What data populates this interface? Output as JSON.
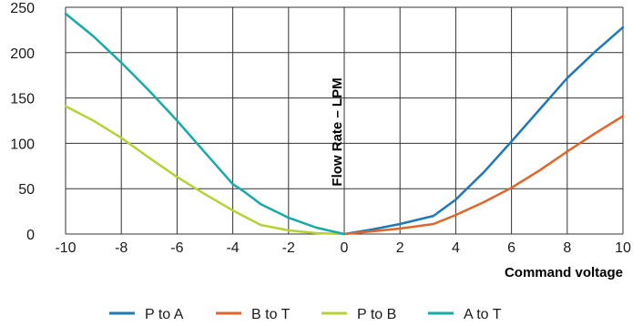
{
  "chart_data": {
    "type": "line",
    "title": "",
    "xlabel": "Command voltage",
    "ylabel": "Flow Rate – LPM",
    "xlim": [
      -10,
      10
    ],
    "ylim": [
      0,
      250
    ],
    "x_ticks": [
      "-10",
      "-8",
      "-6",
      "-4",
      "-2",
      "0",
      "2",
      "4",
      "6",
      "8",
      "10"
    ],
    "y_ticks": [
      "0",
      "50",
      "100",
      "150",
      "200",
      "250"
    ],
    "grid": true,
    "legend_position": "bottom",
    "series": [
      {
        "name": "P to A",
        "color": "#1f78b8",
        "points": [
          [
            0,
            0
          ],
          [
            1,
            5
          ],
          [
            2,
            11
          ],
          [
            3.2,
            20
          ],
          [
            4,
            38
          ],
          [
            5,
            68
          ],
          [
            6,
            102
          ],
          [
            7,
            137
          ],
          [
            8,
            172
          ],
          [
            9,
            201
          ],
          [
            10,
            228
          ]
        ]
      },
      {
        "name": "B to T",
        "color": "#e0652a",
        "points": [
          [
            0,
            0
          ],
          [
            1,
            3
          ],
          [
            2,
            6
          ],
          [
            3.2,
            11
          ],
          [
            4,
            21
          ],
          [
            5,
            35
          ],
          [
            6,
            51
          ],
          [
            7,
            70
          ],
          [
            8,
            91
          ],
          [
            9,
            111
          ],
          [
            10,
            130
          ]
        ]
      },
      {
        "name": "P to B",
        "color": "#b5d335",
        "points": [
          [
            -10,
            141
          ],
          [
            -9,
            125
          ],
          [
            -8,
            106
          ],
          [
            -7,
            84
          ],
          [
            -6,
            63
          ],
          [
            -5,
            44
          ],
          [
            -4,
            26
          ],
          [
            -3,
            10
          ],
          [
            -2,
            4
          ],
          [
            -1,
            1
          ],
          [
            0,
            0
          ]
        ]
      },
      {
        "name": "A to T",
        "color": "#16aaa8",
        "points": [
          [
            -10,
            243
          ],
          [
            -9,
            218
          ],
          [
            -8,
            189
          ],
          [
            -7,
            158
          ],
          [
            -6,
            125
          ],
          [
            -5,
            90
          ],
          [
            -4,
            55
          ],
          [
            -3.6,
            47
          ],
          [
            -3,
            33
          ],
          [
            -2,
            18
          ],
          [
            -1,
            7
          ],
          [
            0,
            0
          ]
        ]
      }
    ]
  }
}
